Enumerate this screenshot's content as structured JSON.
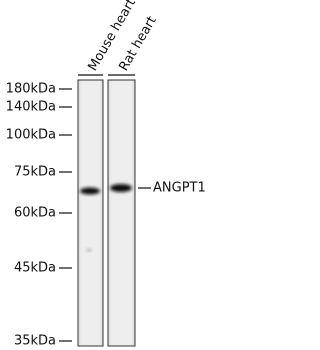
{
  "lanes": [
    {
      "label": "Mouse heart"
    },
    {
      "label": "Rat heart"
    }
  ],
  "markers": [
    {
      "label": "180kDa"
    },
    {
      "label": "140kDa"
    },
    {
      "label": "100kDa"
    },
    {
      "label": "75kDa"
    },
    {
      "label": "60kDa"
    },
    {
      "label": "45kDa"
    },
    {
      "label": "35kDa"
    }
  ],
  "band": {
    "label": "ANGPT1"
  }
}
